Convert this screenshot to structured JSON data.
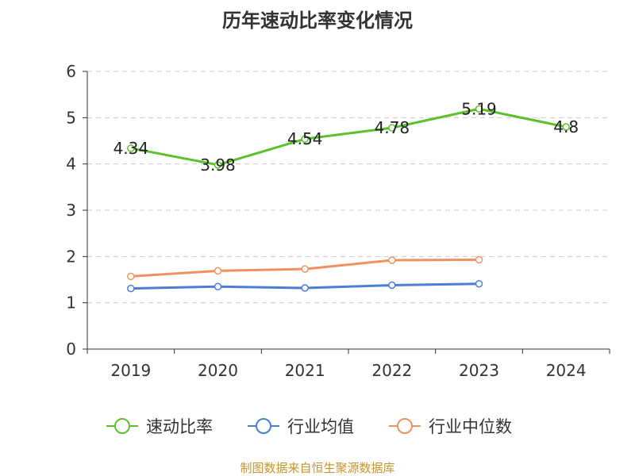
{
  "chart_data": {
    "type": "line",
    "title": "历年速动比率变化情况",
    "categories": [
      "2019",
      "2020",
      "2021",
      "2022",
      "2023",
      "2024"
    ],
    "ylim": [
      0,
      6
    ],
    "yticks": [
      0,
      1,
      2,
      3,
      4,
      5,
      6
    ],
    "grid": true,
    "legend_position": "bottom",
    "series": [
      {
        "name": "速动比率",
        "color": "#5cc02a",
        "values": [
          4.34,
          3.98,
          4.54,
          4.78,
          5.19,
          4.8
        ],
        "labels": [
          "4.34",
          "3.98",
          "4.54",
          "4.78",
          "5.19",
          "4.8"
        ]
      },
      {
        "name": "行业均值",
        "color": "#4a7fd6",
        "values": [
          1.31,
          1.35,
          1.32,
          1.38,
          1.41,
          null
        ]
      },
      {
        "name": "行业中位数",
        "color": "#f29160",
        "values": [
          1.57,
          1.69,
          1.73,
          1.92,
          1.93,
          null
        ]
      }
    ],
    "source": "制图数据来自恒生聚源数据库"
  }
}
